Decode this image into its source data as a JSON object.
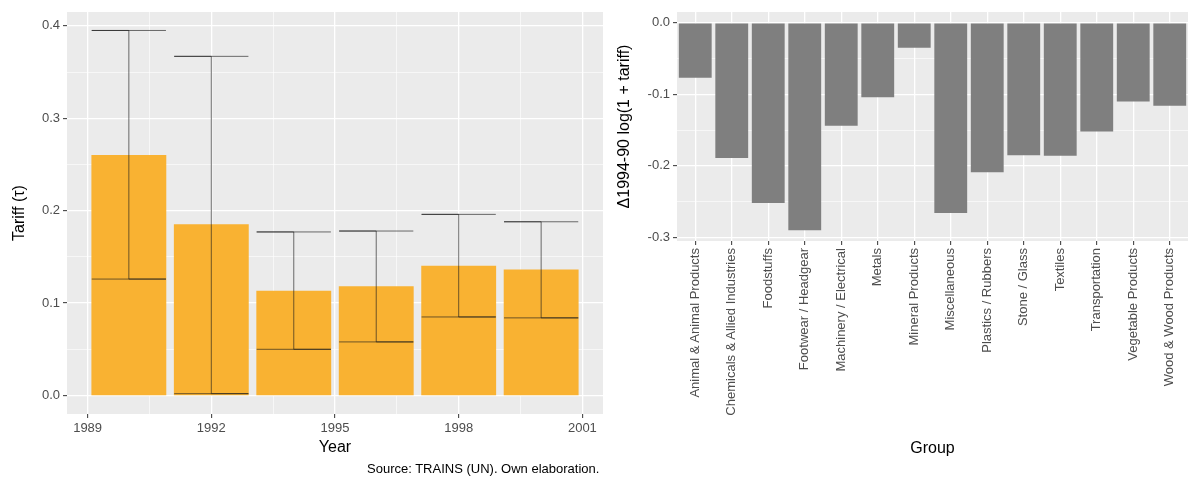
{
  "chart_data": [
    {
      "type": "bar",
      "xlabel": "Year",
      "ylabel": "Tariff (τ)",
      "x": [
        1990,
        1992,
        1994,
        1996,
        1998,
        2000
      ],
      "values": [
        0.26,
        0.185,
        0.113,
        0.118,
        0.14,
        0.136
      ],
      "color": "#f9b232",
      "errors": [
        [
          0.126,
          0.395
        ],
        [
          0.002,
          0.367
        ],
        [
          0.05,
          0.177
        ],
        [
          0.058,
          0.178
        ],
        [
          0.085,
          0.196
        ],
        [
          0.084,
          0.188
        ]
      ],
      "xlim": [
        1988.5,
        2001.5
      ],
      "xticks": [
        1989,
        {
          "value": 1990.5,
          "label": null
        },
        1992,
        {
          "value": 1993.5,
          "label": null
        },
        1995,
        {
          "value": 1996.5,
          "label": null
        },
        1998,
        {
          "value": 1999.5,
          "label": null
        },
        2001
      ],
      "ylim": [
        -0.02,
        0.415
      ],
      "yticks": [
        {
          "value": 0,
          "label": "0.0"
        },
        {
          "value": 0.05,
          "label": null
        },
        0.1,
        {
          "value": 0.15,
          "label": null
        },
        0.2,
        {
          "value": 0.25,
          "label": null
        },
        0.3,
        {
          "value": 0.35,
          "label": null
        },
        0.4
      ],
      "grid": true,
      "annotations": [
        "Source: TRAINS (UN). Own elaboration."
      ]
    },
    {
      "type": "bar",
      "xlabel": "Group",
      "ylabel": "Δ1994-90 log(1 + tariff)",
      "categories": [
        "Animal & Animal Products",
        "Chemicals & Allied Industries",
        "Foodstuffs",
        "Footwear / Headgear",
        "Machinery / Electrical",
        "Metals",
        "Mineral Products",
        "Miscellaneous",
        "Plastics / Rubbers",
        "Stone / Glass",
        "Textiles",
        "Transportation",
        "Vegetable Products",
        "Wood & Wood Products"
      ],
      "values": [
        -0.077,
        -0.189,
        -0.252,
        -0.29,
        -0.144,
        -0.104,
        -0.035,
        -0.266,
        -0.209,
        -0.185,
        -0.186,
        -0.152,
        -0.11,
        -0.116
      ],
      "color": "#7f7f7f",
      "ylim": [
        -0.305,
        0.015
      ],
      "yticks": [
        -0.3,
        {
          "value": -0.25,
          "label": null
        },
        -0.2,
        {
          "value": -0.15,
          "label": null
        },
        -0.1,
        {
          "value": -0.05,
          "label": null
        },
        {
          "value": 0,
          "label": "0.0"
        }
      ],
      "grid": true
    }
  ]
}
